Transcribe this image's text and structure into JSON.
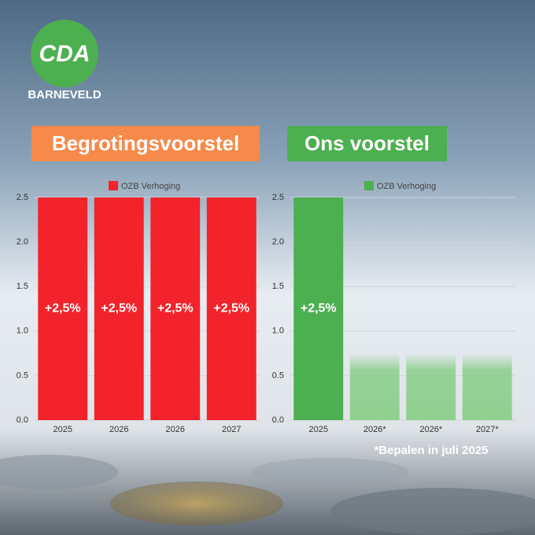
{
  "logo": {
    "text": "CDA",
    "place": "BARNEVELD"
  },
  "footnote": "*Bepalen in juli 2025",
  "chart_data": [
    {
      "type": "bar",
      "title": "Begrotingsvoorstel",
      "title_color": "#f58a4b",
      "categories": [
        "2025",
        "2026",
        "2026",
        "2027"
      ],
      "series": [
        {
          "name": "OZB Verhoging",
          "color": "#f2232a",
          "colors": [
            "#f2232a",
            "#f2232a",
            "#f2232a",
            "#f2232a"
          ],
          "values": [
            2.5,
            2.5,
            2.5,
            2.5
          ],
          "value_labels": [
            "+2,5%",
            "+2,5%",
            "+2,5%",
            "+2,5%"
          ]
        }
      ],
      "ylim": [
        0,
        2.5
      ],
      "yticks": [
        {
          "value": 0,
          "label": "0.0"
        },
        0.5,
        {
          "value": 1,
          "label": "1.0"
        },
        1.5,
        {
          "value": 2,
          "label": "2.0"
        },
        2.5
      ],
      "grid": true
    },
    {
      "type": "bar",
      "title": "Ons voorstel",
      "title_color": "#4caf50",
      "categories": [
        "2025",
        "2026*",
        "2026*",
        "2027*"
      ],
      "series": [
        {
          "name": "OZB Verhoging",
          "color": "#4caf50",
          "colors": [
            "#4caf50",
            "#8fd08f",
            "#8fd08f",
            "#8fd08f"
          ],
          "values": [
            2.5,
            0.75,
            0.75,
            0.75
          ],
          "value_labels": [
            "+2,5%",
            null,
            null,
            null
          ]
        }
      ],
      "ylim": [
        0,
        2.5
      ],
      "yticks": [
        {
          "value": 0,
          "label": "0.0"
        },
        0.5,
        {
          "value": 1,
          "label": "1.0"
        },
        1.5,
        {
          "value": 2,
          "label": "2.0"
        },
        2.5
      ],
      "grid": true
    }
  ]
}
